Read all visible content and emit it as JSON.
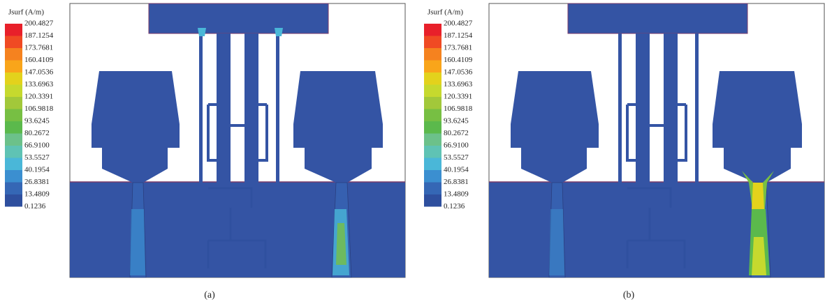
{
  "panels": [
    {
      "legend": {
        "title": "Jsurf (A/m)",
        "labels": [
          "200.4827",
          "187.1254",
          "173.7681",
          "160.4109",
          "147.0536",
          "133.6963",
          "120.3391",
          "106.9818",
          "93.6245",
          "80.2672",
          "66.9100",
          "53.5527",
          "40.1954",
          "26.8381",
          "13.4809",
          "0.1236"
        ]
      },
      "caption": "(a)"
    },
    {
      "legend": {
        "title": "Jsurf (A/m)",
        "labels": [
          "200.4827",
          "187.1254",
          "173.7681",
          "160.4109",
          "147.0536",
          "133.6963",
          "120.3391",
          "106.9818",
          "93.6245",
          "80.2672",
          "66.9100",
          "53.5527",
          "40.1954",
          "26.8381",
          "13.4809",
          "0.1236"
        ]
      },
      "caption": "(b)"
    }
  ]
}
